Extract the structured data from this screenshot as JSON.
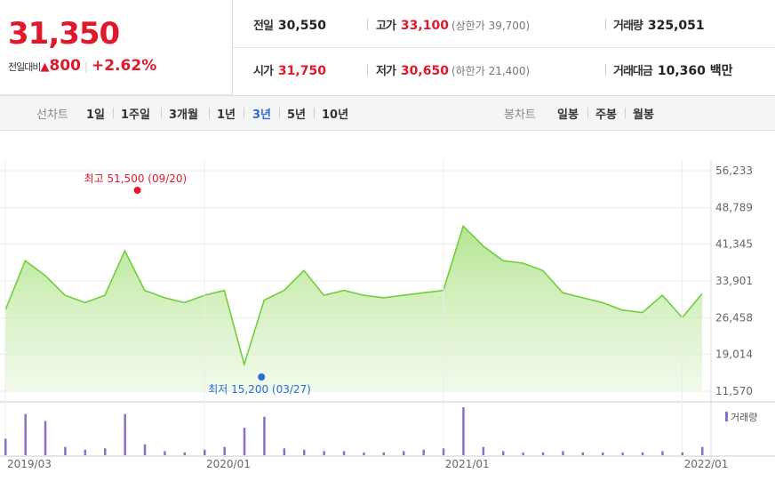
{
  "price": {
    "current": "31,350",
    "change_label": "전일대비",
    "change_arrow": "▲",
    "change_amount": "800",
    "change_rate": "+2.62%"
  },
  "stats": {
    "prev_close": {
      "label": "전일",
      "value": "30,550"
    },
    "high": {
      "label": "고가",
      "value": "33,100",
      "sub": "(상한가 39,700)"
    },
    "volume": {
      "label": "거래량",
      "value": "325,051"
    },
    "open": {
      "label": "시가",
      "value": "31,750"
    },
    "low": {
      "label": "저가",
      "value": "30,650",
      "sub": "(하한가 21,400)"
    },
    "amount": {
      "label": "거래대금",
      "value": "10,360 백만"
    }
  },
  "tabs": {
    "line_label": "선차트",
    "periods": [
      "1일",
      "1주일",
      "3개월",
      "1년",
      "3년",
      "5년",
      "10년"
    ],
    "active_period": "3년",
    "candle_label": "봉차트",
    "candles": [
      "일봉",
      "주봉",
      "월봉"
    ]
  },
  "colors": {
    "up": "#e0182b",
    "active": "#2e6bd4",
    "line": "#6fcf3b",
    "volume": "#8b6fc9"
  },
  "chart_data": {
    "type": "area",
    "y_ticks": [
      "56,233",
      "48,789",
      "41,345",
      "33,901",
      "26,458",
      "19,014",
      "11,570"
    ],
    "ylim": [
      11570,
      56233
    ],
    "x_ticks": [
      "2019/03",
      "2020/01",
      "2021/01",
      "2022/01"
    ],
    "high_annotation": "최고 51,500 (09/20)",
    "low_annotation": "최저 15,200 (03/27)",
    "high": {
      "date": "2019/09/20",
      "value": 51500
    },
    "low": {
      "date": "2020/03/27",
      "value": 15200
    },
    "volume_legend": "거래량",
    "x": [
      "2019-03",
      "2019-04",
      "2019-05",
      "2019-06",
      "2019-07",
      "2019-08",
      "2019-09",
      "2019-10",
      "2019-11",
      "2019-12",
      "2020-01",
      "2020-02",
      "2020-03",
      "2020-04",
      "2020-05",
      "2020-06",
      "2020-07",
      "2020-08",
      "2020-09",
      "2020-10",
      "2020-11",
      "2020-12",
      "2021-01",
      "2021-02",
      "2021-03",
      "2021-04",
      "2021-05",
      "2021-06",
      "2021-07",
      "2021-08",
      "2021-09",
      "2021-10",
      "2021-11",
      "2021-12",
      "2022-01",
      "2022-02"
    ],
    "series": [
      {
        "values": [
          28000,
          38000,
          35000,
          31000,
          29500,
          31000,
          40000,
          32000,
          30500,
          29500,
          31000,
          32000,
          17000,
          30000,
          32000,
          36000,
          31000,
          32000,
          31000,
          30500,
          31000,
          31500,
          32000,
          45000,
          41000,
          38000,
          37500,
          36000,
          31500,
          30500,
          29500,
          28000,
          27500,
          31000,
          26500,
          31350
        ]
      }
    ],
    "volume": [
      12,
      30,
      25,
      6,
      4,
      5,
      30,
      8,
      3,
      2,
      4,
      6,
      20,
      28,
      5,
      4,
      3,
      3,
      2,
      2,
      3,
      4,
      5,
      35,
      6,
      3,
      2,
      2,
      3,
      2,
      2,
      2,
      2,
      3,
      2,
      6
    ]
  }
}
